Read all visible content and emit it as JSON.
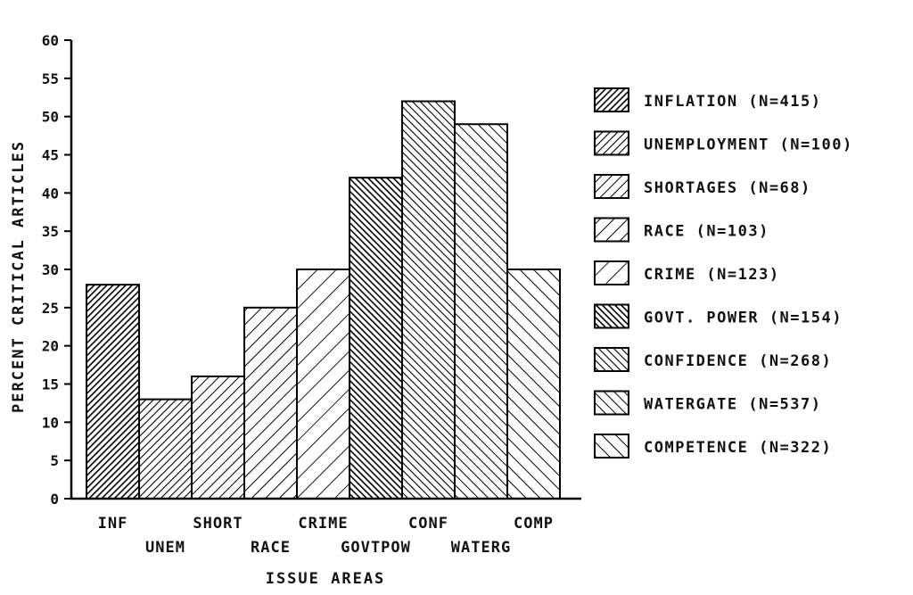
{
  "chart_data": {
    "type": "bar",
    "title": "",
    "xlabel": "ISSUE AREAS",
    "ylabel": "PERCENT CRITICAL ARTICLES",
    "ylim": [
      0,
      60
    ],
    "yticks": [
      "0",
      "5",
      "10",
      "15",
      "20",
      "25",
      "30",
      "35",
      "40",
      "45",
      "50",
      "55",
      "60"
    ],
    "grid": false,
    "legend_position": "right",
    "categories": [
      "INF",
      "UNEM",
      "SHORT",
      "RACE",
      "CRIME",
      "GOVTPOW",
      "CONF",
      "WATERG",
      "COMP"
    ],
    "values": [
      28,
      13,
      16,
      25,
      30,
      42,
      52,
      49,
      30
    ],
    "legend": [
      "INFLATION (N=415)",
      "UNEMPLOYMENT (N=100)",
      "SHORTAGES (N=68)",
      "RACE (N=103)",
      "CRIME (N=123)",
      "GOVT. POWER (N=154)",
      "CONFIDENCE (N=268)",
      "WATERGATE (N=537)",
      "COMPETENCE (N=322)"
    ]
  }
}
